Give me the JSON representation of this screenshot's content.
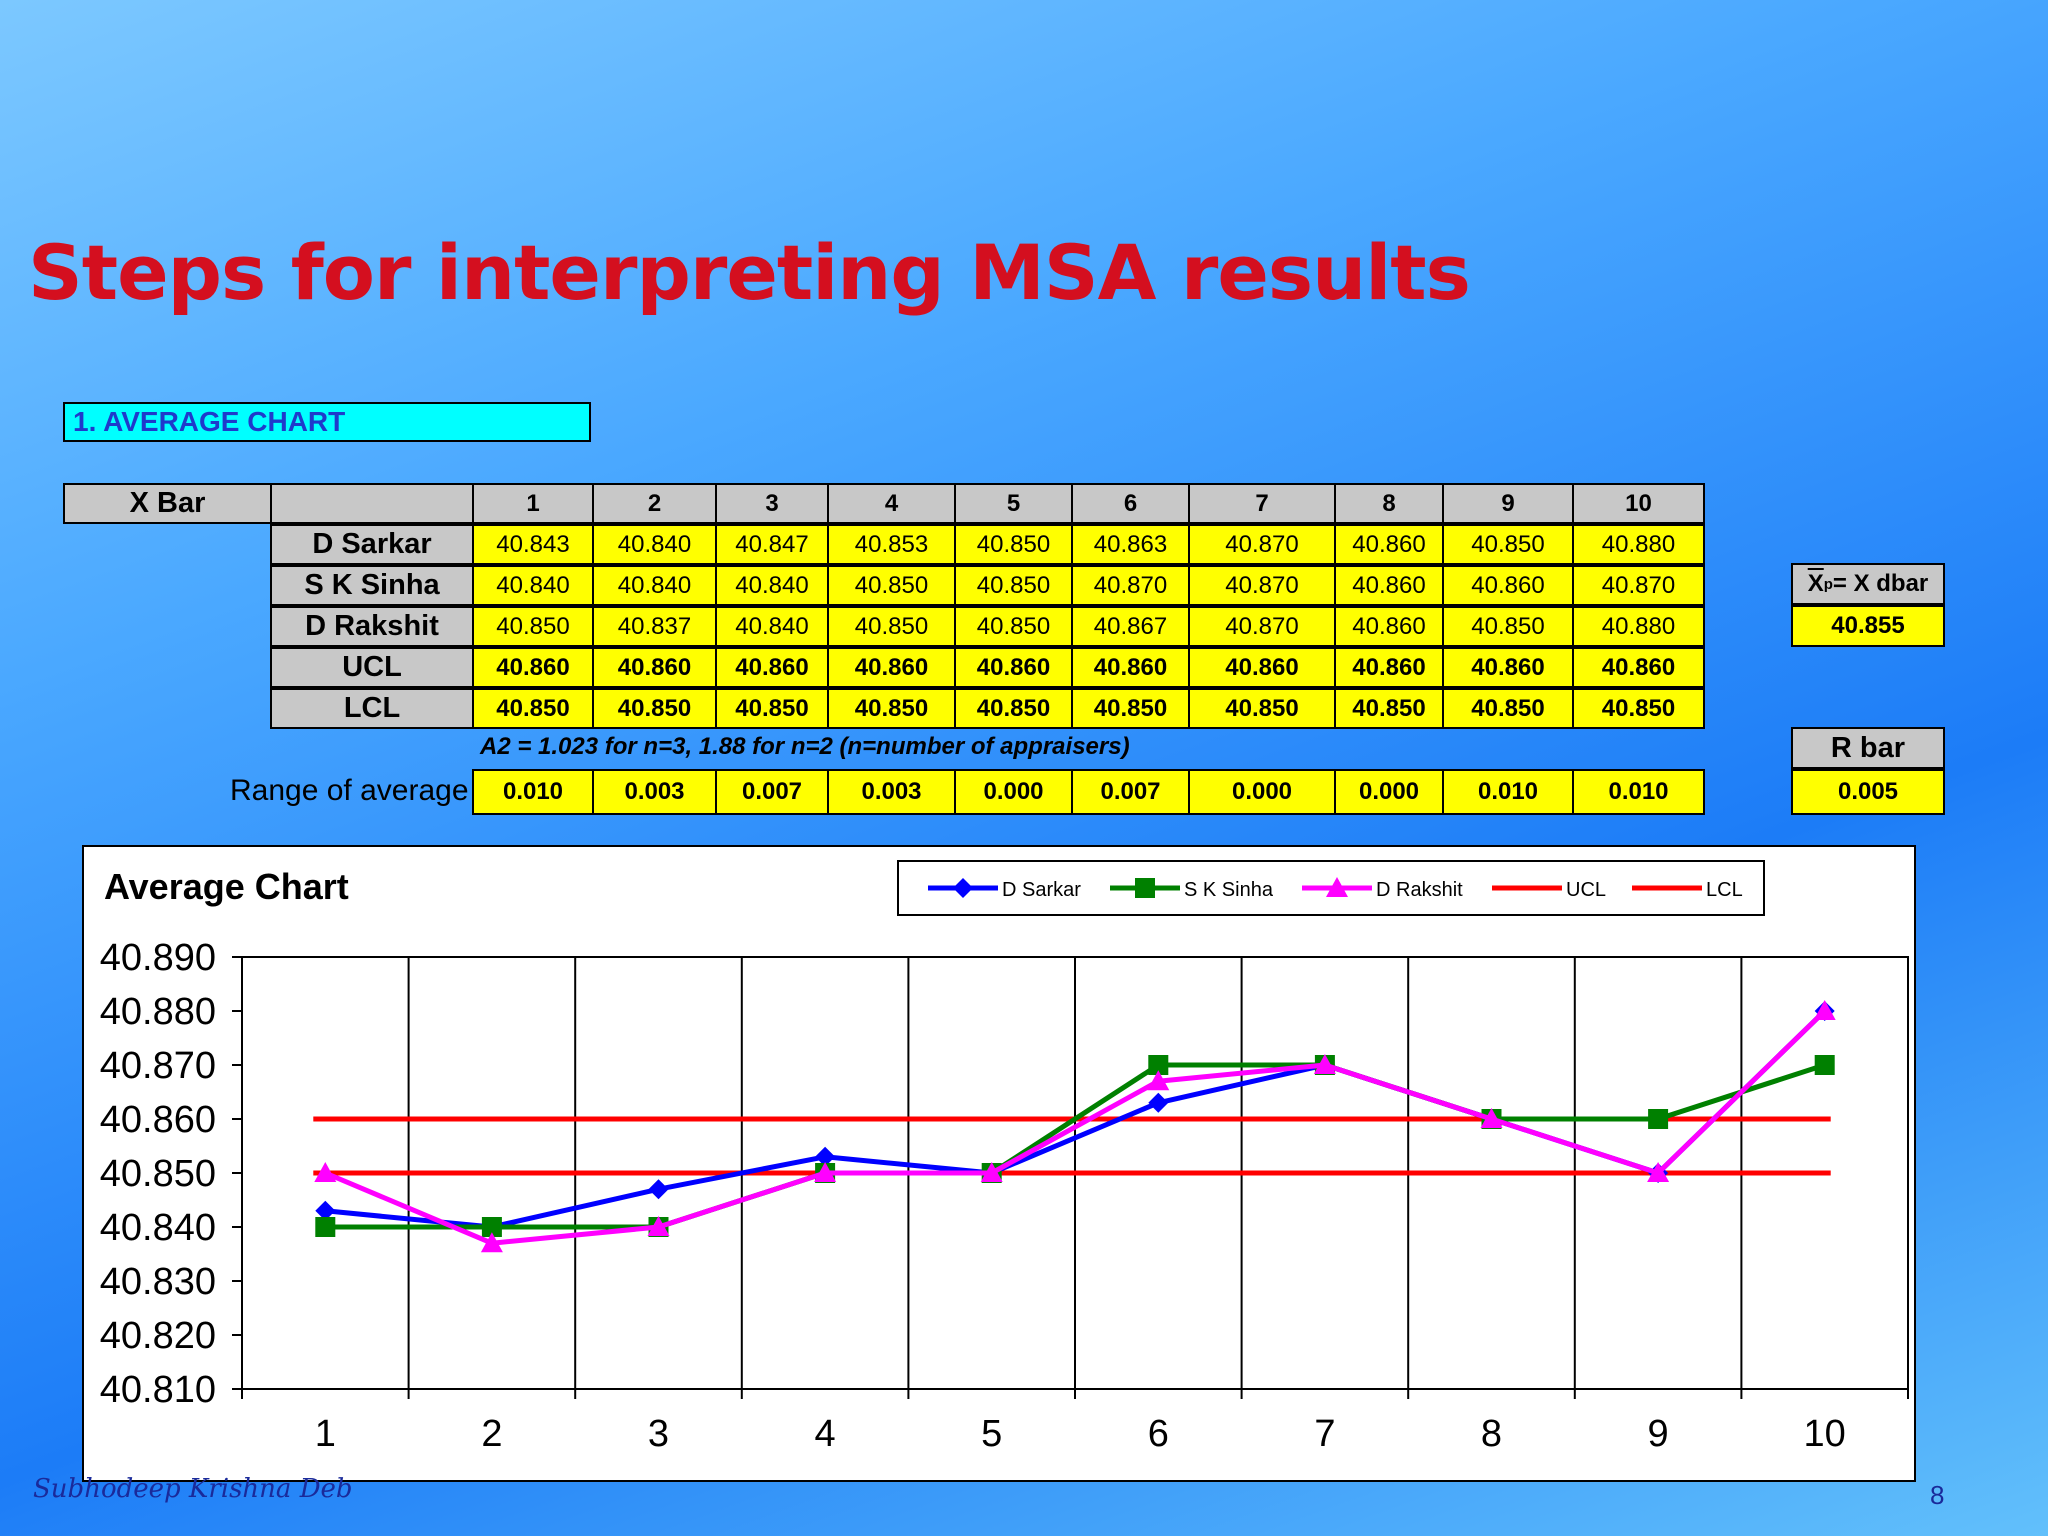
{
  "title": "Steps for interpreting MSA results",
  "section_label": "1. AVERAGE CHART",
  "table": {
    "corner_label": "X Bar",
    "columns": [
      "1",
      "2",
      "3",
      "4",
      "5",
      "6",
      "7",
      "8",
      "9",
      "10"
    ],
    "rows": [
      {
        "label": "D Sarkar",
        "values": [
          "40.843",
          "40.840",
          "40.847",
          "40.853",
          "40.850",
          "40.863",
          "40.870",
          "40.860",
          "40.850",
          "40.880"
        ],
        "bold": false
      },
      {
        "label": "S K Sinha",
        "values": [
          "40.840",
          "40.840",
          "40.840",
          "40.850",
          "40.850",
          "40.870",
          "40.870",
          "40.860",
          "40.860",
          "40.870"
        ],
        "bold": false
      },
      {
        "label": "D Rakshit",
        "values": [
          "40.850",
          "40.837",
          "40.840",
          "40.850",
          "40.850",
          "40.867",
          "40.870",
          "40.860",
          "40.850",
          "40.880"
        ],
        "bold": false
      },
      {
        "label": "UCL",
        "values": [
          "40.860",
          "40.860",
          "40.860",
          "40.860",
          "40.860",
          "40.860",
          "40.860",
          "40.860",
          "40.860",
          "40.860"
        ],
        "bold": true
      },
      {
        "label": "LCL",
        "values": [
          "40.850",
          "40.850",
          "40.850",
          "40.850",
          "40.850",
          "40.850",
          "40.850",
          "40.850",
          "40.850",
          "40.850"
        ],
        "bold": true
      }
    ],
    "note": "A2 = 1.023 for n=3, 1.88 for n=2 (n=number of appraisers)",
    "range_label": "Range of average",
    "range_values": [
      "0.010",
      "0.003",
      "0.007",
      "0.003",
      "0.000",
      "0.007",
      "0.000",
      "0.000",
      "0.010",
      "0.010"
    ]
  },
  "side": {
    "xdbar_x": "X",
    "xdbar_sub": "p",
    "xdbar_rest": "= X dbar",
    "xdbar_value": "40.855",
    "rbar_label": "R bar",
    "rbar_value": "0.005"
  },
  "chart_data": {
    "type": "line",
    "title": "Average Chart",
    "x": [
      1,
      2,
      3,
      4,
      5,
      6,
      7,
      8,
      9,
      10
    ],
    "ylim": [
      40.81,
      40.89
    ],
    "yticks": [
      "40.890",
      "40.880",
      "40.870",
      "40.860",
      "40.850",
      "40.840",
      "40.830",
      "40.820",
      "40.810"
    ],
    "xticks": [
      "1",
      "2",
      "3",
      "4",
      "5",
      "6",
      "7",
      "8",
      "9",
      "10"
    ],
    "grid": "vertical",
    "legend_position": "top",
    "series": [
      {
        "name": "D Sarkar",
        "color": "#0000ff",
        "marker": "diamond",
        "values": [
          40.843,
          40.84,
          40.847,
          40.853,
          40.85,
          40.863,
          40.87,
          40.86,
          40.85,
          40.88
        ]
      },
      {
        "name": "S K Sinha",
        "color": "#008000",
        "marker": "square",
        "values": [
          40.84,
          40.84,
          40.84,
          40.85,
          40.85,
          40.87,
          40.87,
          40.86,
          40.86,
          40.87
        ]
      },
      {
        "name": "D Rakshit",
        "color": "#ff00ff",
        "marker": "triangle",
        "values": [
          40.85,
          40.837,
          40.84,
          40.85,
          40.85,
          40.867,
          40.87,
          40.86,
          40.85,
          40.88
        ]
      },
      {
        "name": "UCL",
        "color": "#ff0000",
        "marker": "none",
        "values": [
          40.86,
          40.86,
          40.86,
          40.86,
          40.86,
          40.86,
          40.86,
          40.86,
          40.86,
          40.86
        ]
      },
      {
        "name": "LCL",
        "color": "#ff0000",
        "marker": "none",
        "values": [
          40.85,
          40.85,
          40.85,
          40.85,
          40.85,
          40.85,
          40.85,
          40.85,
          40.85,
          40.85
        ]
      }
    ]
  },
  "footer": {
    "author": "Subhodeep Krishna Deb",
    "page": "8"
  }
}
